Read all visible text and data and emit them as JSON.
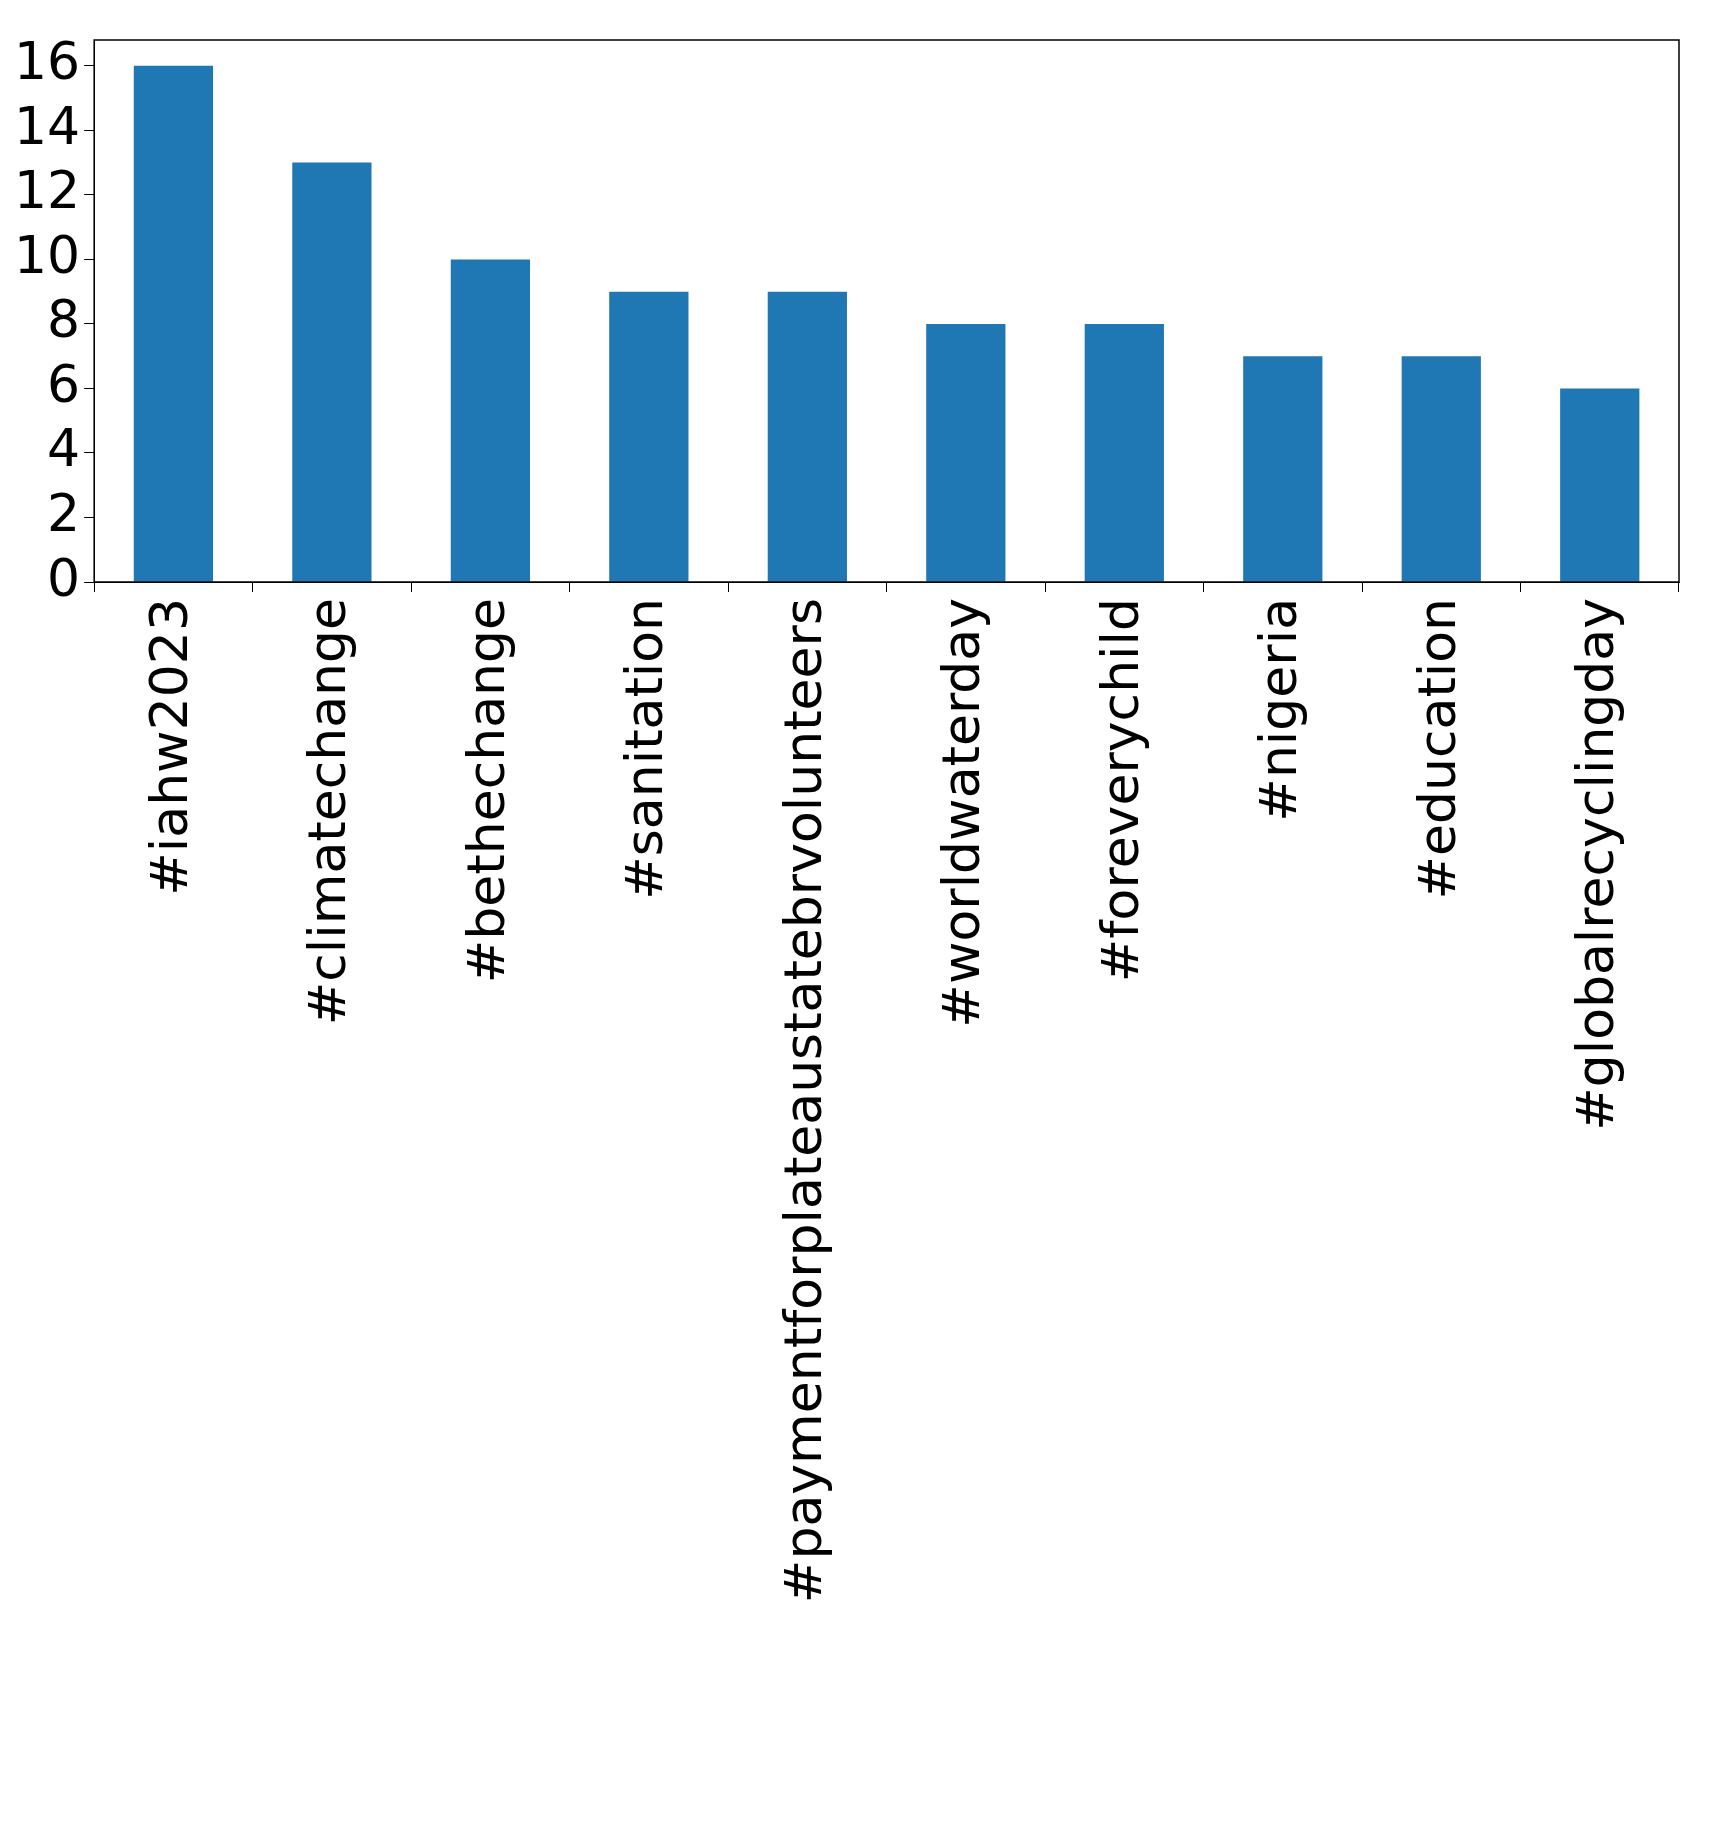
{
  "chart_data": {
    "type": "bar",
    "categories": [
      "#iahw2023",
      "#climatechange",
      "#bethechange",
      "#sanitation",
      "#paymentforplateaustatebrvolunteers",
      "#worldwaterday",
      "#foreverychild",
      "#nigeria",
      "#education",
      "#globalrecyclingday"
    ],
    "values": [
      16,
      13,
      10,
      9,
      9,
      8,
      8,
      7,
      7,
      6
    ],
    "color": "#1f77b4",
    "ylim": [
      0,
      16.8
    ],
    "yticks": [
      0,
      2,
      4,
      6,
      8,
      10,
      12,
      14,
      16
    ],
    "grid": false,
    "legend": false
  }
}
